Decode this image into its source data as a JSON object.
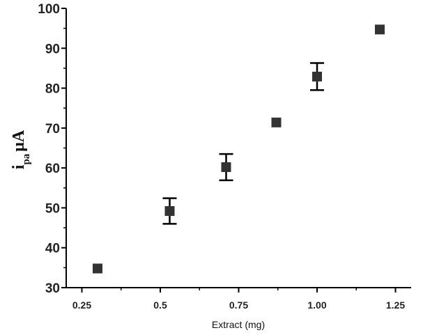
{
  "chart_data": {
    "type": "scatter",
    "xlabel": "Extract (mg)",
    "ylabel": {
      "main": "i",
      "subscript": "pa",
      "unit": "μA"
    },
    "xlim": [
      0.2,
      1.3
    ],
    "ylim": [
      30,
      100
    ],
    "x_ticks": [
      0.25,
      0.5,
      0.75,
      1.0,
      1.25
    ],
    "x_tick_labels": [
      "0.25",
      "0.5",
      "0.75",
      "1.00",
      "1.25"
    ],
    "y_ticks": [
      30,
      40,
      50,
      60,
      70,
      80,
      90,
      100
    ],
    "y_tick_labels": [
      "30",
      "40",
      "50",
      "60",
      "70",
      "80",
      "90",
      "100"
    ],
    "grid": false,
    "marker_color": "#333333",
    "series": [
      {
        "points": [
          {
            "x": 0.3,
            "y": 34.8
          },
          {
            "x": 0.53,
            "y": 49.2,
            "err": 3.2
          },
          {
            "x": 0.71,
            "y": 60.2,
            "err": 3.3
          },
          {
            "x": 0.87,
            "y": 71.4
          },
          {
            "x": 1.0,
            "y": 82.9,
            "err": 3.4
          },
          {
            "x": 1.2,
            "y": 94.7
          }
        ]
      }
    ]
  }
}
